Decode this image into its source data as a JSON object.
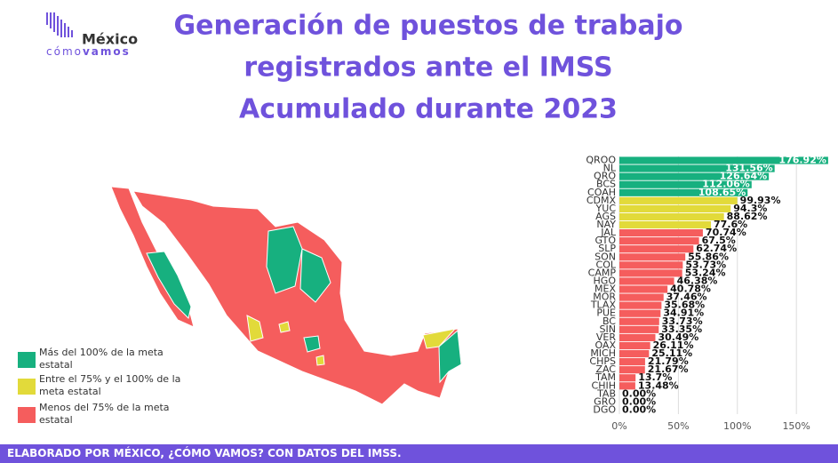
{
  "header": {
    "logo_top": "México",
    "logo_bottom_a": "cómo",
    "logo_bottom_b": "vamos",
    "title_lines": [
      "Generación de puestos de trabajo",
      "registrados ante el IMSS",
      "Acumulado durante 2023"
    ]
  },
  "legend": [
    {
      "label": "Más del 100% de la meta estatal",
      "color": "#17b07f"
    },
    {
      "label": "Entre el 75% y el 100% de la meta estatal",
      "color": "#e2da3a"
    },
    {
      "label": "Menos del 75% de la meta estatal",
      "color": "#f55d5d"
    }
  ],
  "chart_data": {
    "type": "bar",
    "orientation": "horizontal",
    "categories": [
      "QROO",
      "NL",
      "QRO",
      "BCS",
      "COAH",
      "CDMX",
      "YUC",
      "AGS",
      "NAY",
      "JAL",
      "GTO",
      "SLP",
      "SON",
      "COL",
      "CAMP",
      "HGO",
      "MEX",
      "MOR",
      "TLAX",
      "PUE",
      "BC",
      "SIN",
      "VER",
      "OAX",
      "MICH",
      "CHPS",
      "ZAC",
      "TAM",
      "CHIH",
      "TAB",
      "GRO",
      "DGO"
    ],
    "values": [
      176.92,
      131.56,
      126.64,
      112.06,
      108.65,
      99.93,
      94.3,
      88.62,
      77.6,
      70.74,
      67.5,
      62.74,
      55.86,
      53.73,
      53.24,
      46.38,
      40.78,
      37.46,
      35.68,
      34.91,
      33.73,
      33.35,
      30.49,
      26.11,
      25.11,
      21.79,
      21.67,
      13.7,
      13.48,
      0,
      0,
      0
    ],
    "value_labels": [
      "176.92%",
      "131.56%",
      "126.64%",
      "112.06%",
      "108.65%",
      "99.93%",
      "94.3%",
      "88.62%",
      "77.6%",
      "70.74%",
      "67.5%",
      "62.74%",
      "55.86%",
      "53.73%",
      "53.24%",
      "46.38%",
      "40.78%",
      "37.46%",
      "35.68%",
      "34.91%",
      "33.73%",
      "33.35%",
      "30.49%",
      "26.11%",
      "25.11%",
      "21.79%",
      "21.67%",
      "13.7%",
      "13.48%",
      "0.00%",
      "0.00%",
      "0.00%"
    ],
    "colors": [
      "#17b07f",
      "#17b07f",
      "#17b07f",
      "#17b07f",
      "#17b07f",
      "#e2da3a",
      "#e2da3a",
      "#e2da3a",
      "#e2da3a",
      "#f55d5d",
      "#f55d5d",
      "#f55d5d",
      "#f55d5d",
      "#f55d5d",
      "#f55d5d",
      "#f55d5d",
      "#f55d5d",
      "#f55d5d",
      "#f55d5d",
      "#f55d5d",
      "#f55d5d",
      "#f55d5d",
      "#f55d5d",
      "#f55d5d",
      "#f55d5d",
      "#f55d5d",
      "#f55d5d",
      "#f55d5d",
      "#f55d5d",
      "#f55d5d",
      "#f55d5d",
      "#f55d5d"
    ],
    "xlim": [
      0,
      180
    ],
    "xticks": [
      {
        "value": 0,
        "label": "0%"
      },
      {
        "value": 50,
        "label": "50%"
      },
      {
        "value": 100,
        "label": "100%"
      },
      {
        "value": 150,
        "label": "150%"
      }
    ],
    "grid": true
  },
  "footer": "ELABORADO POR MÉXICO, ¿CÓMO VAMOS? CON DATOS DEL IMSS."
}
